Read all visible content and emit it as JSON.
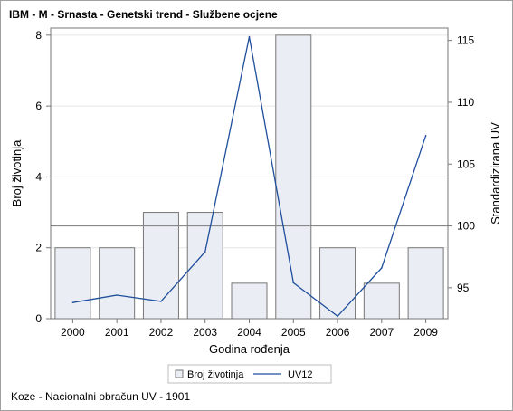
{
  "title": "IBM - M - Srnasta - Genetski trend - Službene ocjene",
  "footnote": "Koze - Nacionalni obračun UV - 1901",
  "colors": {
    "bar_fill": "#eaeef4",
    "bar_stroke": "#777777",
    "line": "#1f4e9c",
    "refline": "#888888",
    "grid": "#e6e6e6",
    "axis": "#777777"
  },
  "chart_data": {
    "type": "bar",
    "categories": [
      "2000",
      "2001",
      "2002",
      "2003",
      "2004",
      "2005",
      "2006",
      "2007",
      "2009"
    ],
    "xlabel": "Godina rođenja",
    "ylabel": "Broj životinja",
    "y2label": "Standardizirana UV",
    "ylim": [
      0,
      8.2
    ],
    "y2lim": [
      92.5,
      116
    ],
    "yticks": [
      0,
      2,
      4,
      6,
      8
    ],
    "y2ticks": [
      95,
      100,
      105,
      110,
      115
    ],
    "reference_line_y2": 100,
    "grid": true,
    "legend_position": "bottom",
    "series": [
      {
        "name": "Broj životinja",
        "type": "bar",
        "axis": "left",
        "values": [
          2,
          2,
          3,
          3,
          1,
          8,
          2,
          1,
          2
        ]
      },
      {
        "name": "UV12",
        "type": "line",
        "axis": "right",
        "values": [
          93.8,
          94.4,
          93.9,
          97.9,
          115.3,
          95.4,
          92.7,
          96.6,
          107.3
        ]
      }
    ]
  }
}
